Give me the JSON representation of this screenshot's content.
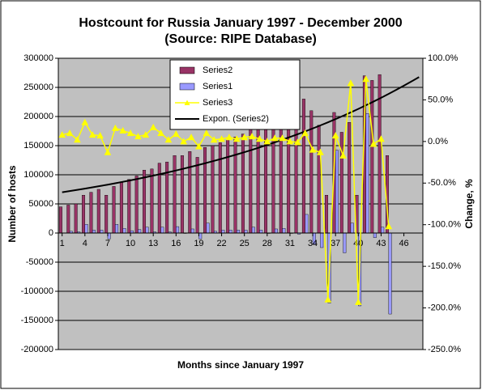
{
  "chart_data": {
    "type": "bar",
    "title": "Hostcount for Russia January 1997 - December 2000",
    "subtitle": "(Source: RIPE Database)",
    "x_label": "Months since January 1997",
    "y_label": "Number of hosts",
    "y2_label": "Change, %",
    "categories": [
      1,
      null,
      null,
      4,
      null,
      null,
      7,
      null,
      null,
      10,
      null,
      null,
      13,
      null,
      null,
      16,
      null,
      null,
      19,
      null,
      null,
      22,
      null,
      null,
      25,
      null,
      null,
      28,
      null,
      null,
      31,
      null,
      null,
      34,
      null,
      null,
      37,
      null,
      null,
      40,
      null,
      null,
      43,
      null,
      null,
      46,
      null,
      null
    ],
    "series": [
      {
        "name": "Series2",
        "type": "bar",
        "color": "#993366",
        "values": [
          45000,
          48000,
          50000,
          65000,
          70000,
          75000,
          65000,
          80000,
          88000,
          92000,
          98000,
          108000,
          110000,
          120000,
          122000,
          133000,
          133000,
          140000,
          130000,
          147000,
          150000,
          155000,
          160000,
          165000,
          170000,
          180000,
          185000,
          185000,
          192000,
          200000,
          200000,
          198000,
          230000,
          210000,
          185000,
          65000,
          207000,
          173000,
          190000,
          65000,
          270000,
          262000,
          272000,
          133000,
          null,
          null,
          null,
          null
        ]
      },
      {
        "name": "Series1",
        "type": "bar",
        "color": "#9999ff",
        "values": [
          null,
          3000,
          2000,
          15000,
          5000,
          5000,
          -10000,
          15000,
          8000,
          4000,
          6000,
          10000,
          2000,
          10000,
          2000,
          11000,
          0,
          7000,
          -10000,
          17000,
          3000,
          5000,
          5000,
          5000,
          5000,
          10000,
          5000,
          0,
          7000,
          8000,
          0,
          -2000,
          32000,
          -20000,
          -25000,
          -120000,
          142000,
          -34000,
          17000,
          -125000,
          205000,
          -8000,
          10000,
          -139000,
          null,
          null,
          null,
          null
        ]
      },
      {
        "name": "Series3",
        "type": "line",
        "axis": "y2",
        "color": "#ffff00",
        "values": [
          8,
          10,
          2,
          23,
          8,
          7,
          -13,
          16,
          13,
          10,
          6,
          8,
          17,
          10,
          2,
          9,
          0,
          5,
          -6,
          10,
          2,
          3,
          5,
          3,
          5,
          6,
          3,
          0,
          4,
          4,
          0,
          -1,
          10,
          -10,
          -13,
          -190,
          7,
          -17,
          70,
          -193,
          75,
          -3,
          3,
          -102,
          null,
          null,
          null,
          null
        ]
      }
    ],
    "trendline": {
      "name": "Expon. (Series2)",
      "series": 0,
      "color": "#000000"
    },
    "ylim": [
      -200000,
      300000
    ],
    "yticks": [
      -200000,
      -150000,
      -100000,
      -50000,
      0,
      50000,
      100000,
      150000,
      200000,
      250000,
      300000
    ],
    "y2lim": [
      -250,
      100
    ],
    "y2ticks": [
      {
        "value": -250,
        "label": "-250.0%"
      },
      {
        "value": -200,
        "label": "-200.0%"
      },
      {
        "value": -150,
        "label": "-150.0%"
      },
      {
        "value": -100,
        "label": "-100.0%"
      },
      {
        "value": -50,
        "label": "-50.0%"
      },
      {
        "value": 0,
        "label": "0.0%"
      },
      {
        "value": 50,
        "label": "50.0%"
      },
      {
        "value": 100,
        "label": "100.0%"
      }
    ],
    "grid": true,
    "legend": "top"
  }
}
